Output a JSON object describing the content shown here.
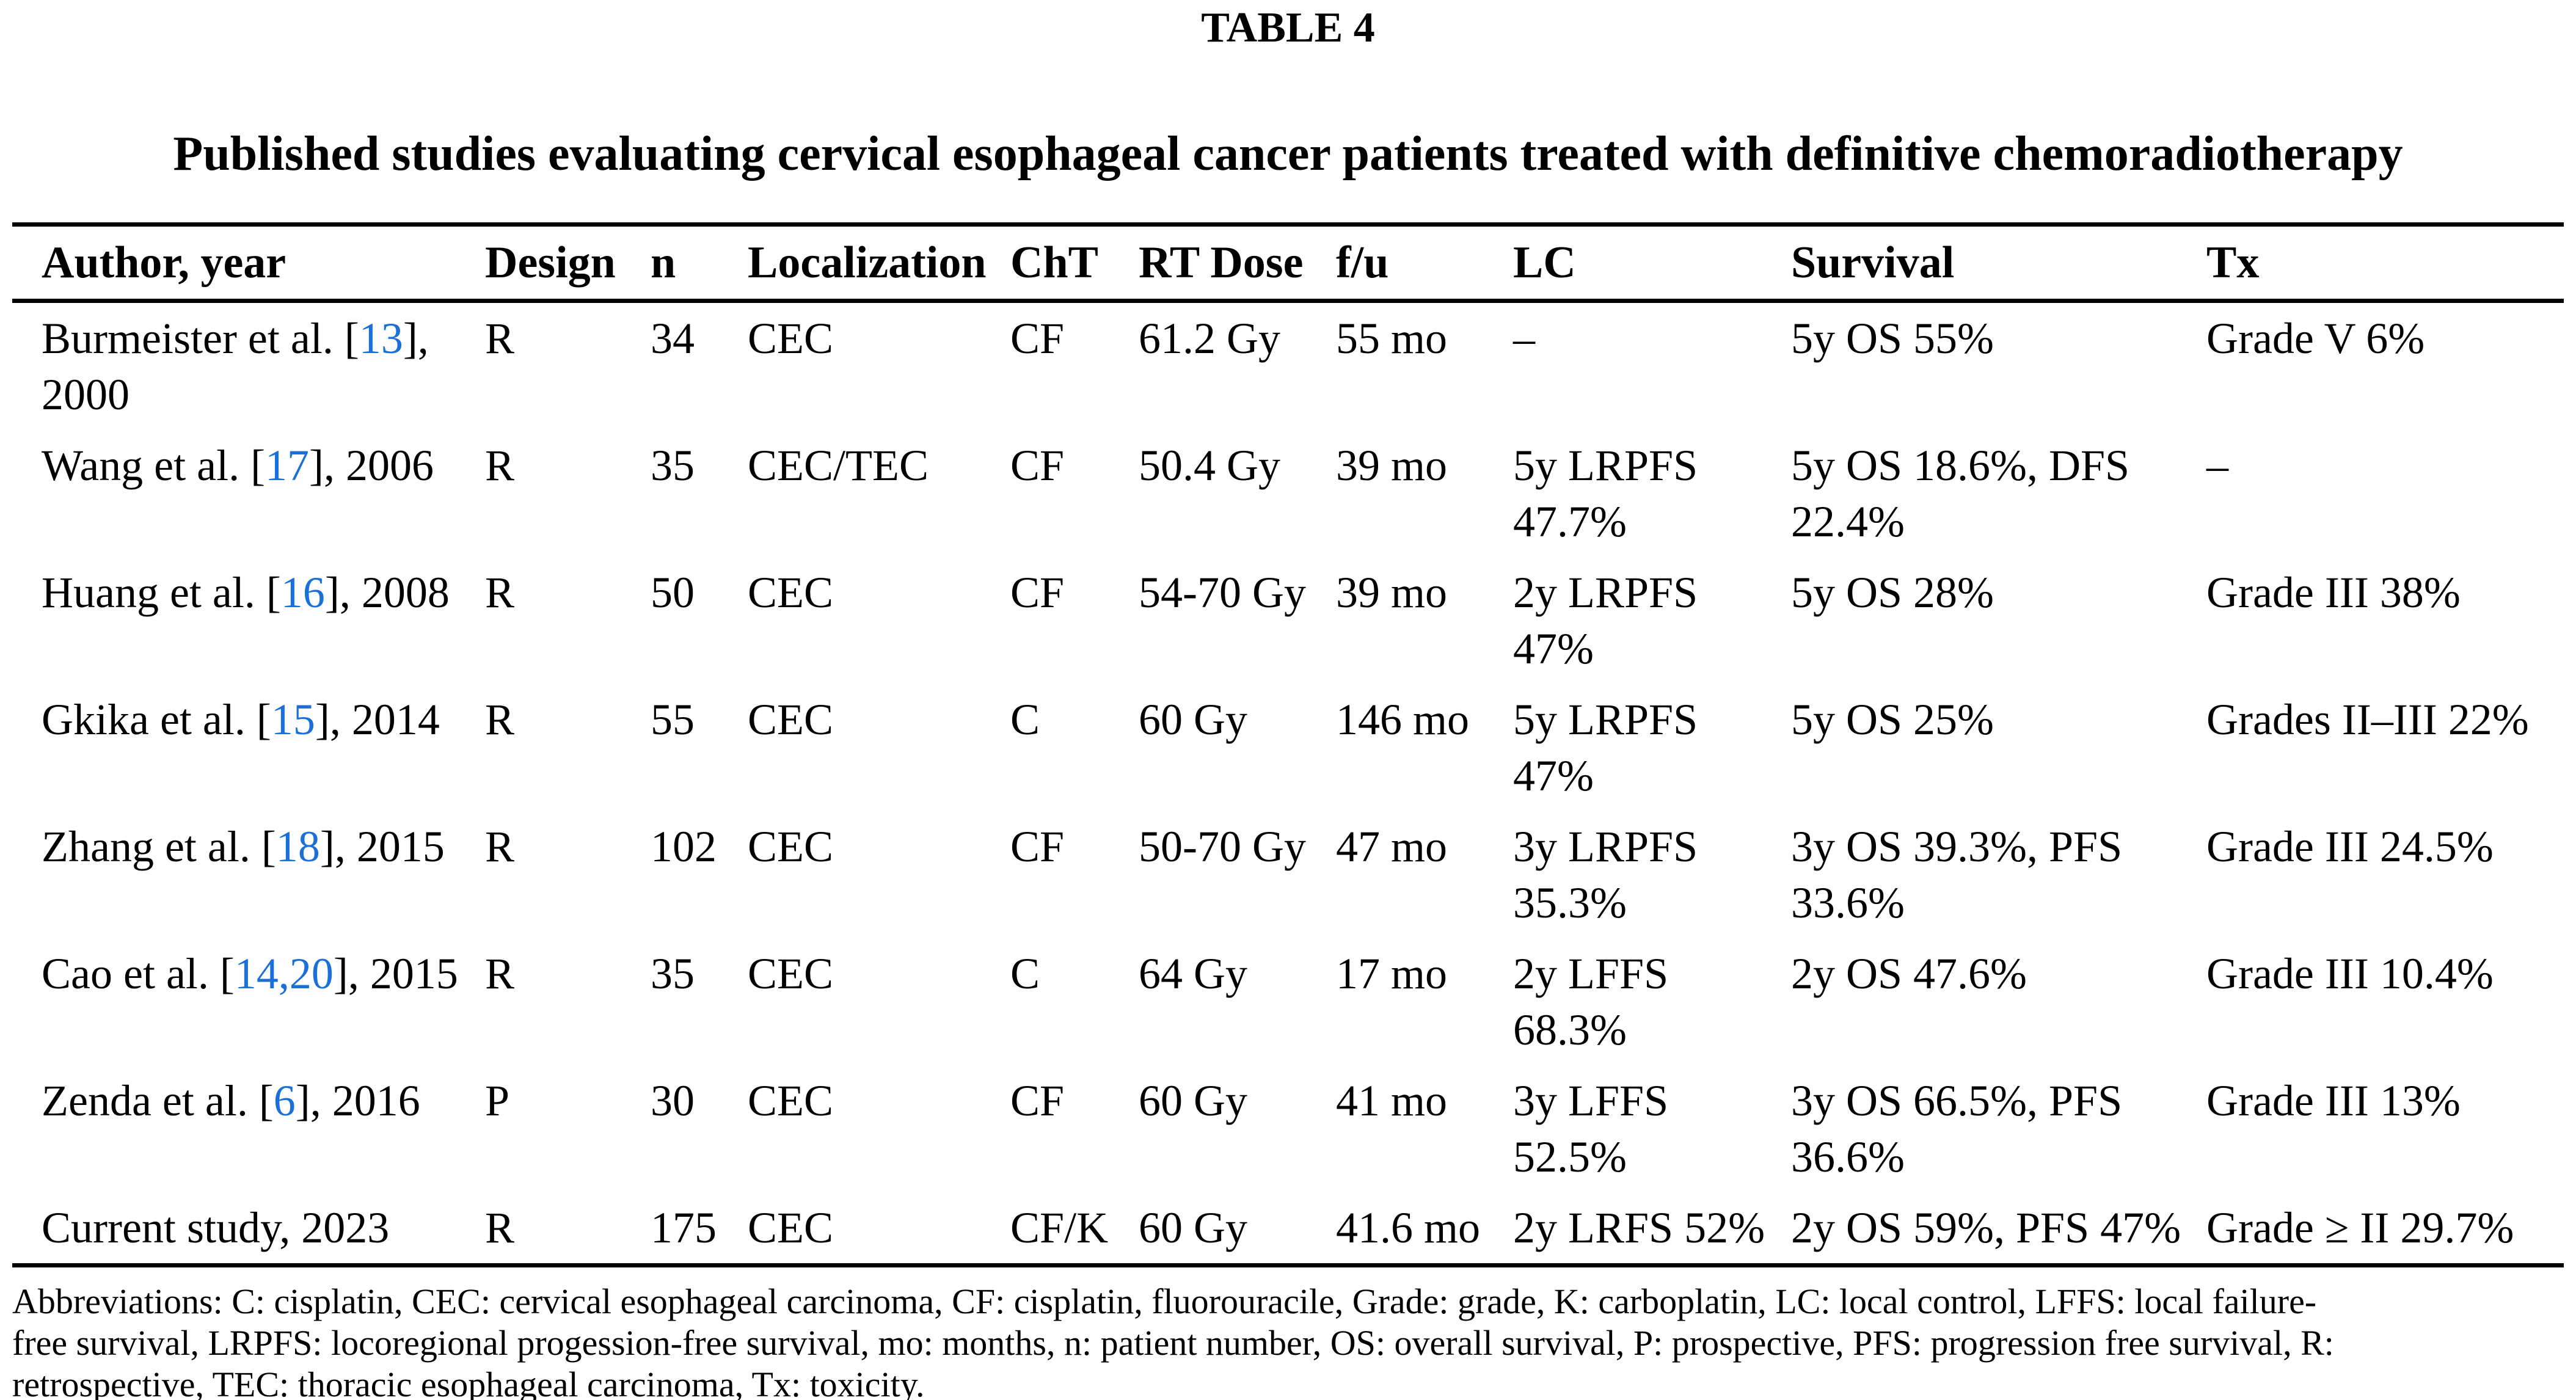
{
  "title": "TABLE 4",
  "subtitle": "Published studies evaluating cervical esophageal cancer patients treated with definitive chemoradiotherapy",
  "colors": {
    "text": "#000000",
    "background": "#FFFFFF",
    "citation_link": "#1B6FD8"
  },
  "table": {
    "columns": [
      "Author, year",
      "Design",
      "n",
      "Localization",
      "ChT",
      "RT Dose",
      "f/u",
      "LC",
      "Survival",
      "Tx"
    ],
    "rows": [
      {
        "author_pre": "Burmeister et al. [",
        "ref": "13",
        "author_post": "],\n2000",
        "design": "R",
        "n": "34",
        "localization": "CEC",
        "cht": "CF",
        "rt_dose": "61.2 Gy",
        "fu": "55 mo",
        "lc": "–",
        "survival": "5y OS 55%",
        "tx": "Grade V 6%"
      },
      {
        "author_pre": "Wang et al. [",
        "ref": "17",
        "author_post": "], 2006",
        "design": "R",
        "n": "35",
        "localization": "CEC/TEC",
        "cht": "CF",
        "rt_dose": "50.4 Gy",
        "fu": "39 mo",
        "lc": "5y LRPFS\n47.7%",
        "survival": "5y OS 18.6%, DFS\n22.4%",
        "tx": "–"
      },
      {
        "author_pre": "Huang et al. [",
        "ref": "16",
        "author_post": "], 2008",
        "design": "R",
        "n": "50",
        "localization": "CEC",
        "cht": "CF",
        "rt_dose": "54-70 Gy",
        "fu": "39 mo",
        "lc": "2y LRPFS\n47%",
        "survival": "5y OS 28%",
        "tx": "Grade III 38%"
      },
      {
        "author_pre": "Gkika et al. [",
        "ref": "15",
        "author_post": "], 2014",
        "design": "R",
        "n": "55",
        "localization": "CEC",
        "cht": "C",
        "rt_dose": "60 Gy",
        "fu": "146 mo",
        "lc": "5y LRPFS\n47%",
        "survival": "5y OS 25%",
        "tx": "Grades II–III 22%"
      },
      {
        "author_pre": "Zhang et al. [",
        "ref": "18",
        "author_post": "], 2015",
        "design": "R",
        "n": "102",
        "localization": "CEC",
        "cht": "CF",
        "rt_dose": "50-70 Gy",
        "fu": "47 mo",
        "lc": "3y LRPFS\n35.3%",
        "survival": "3y OS 39.3%, PFS\n33.6%",
        "tx": "Grade III 24.5%"
      },
      {
        "author_pre": "Cao et al. [",
        "ref": "14,20",
        "author_post": "], 2015",
        "design": "R",
        "n": "35",
        "localization": "CEC",
        "cht": "C",
        "rt_dose": "64 Gy",
        "fu": "17 mo",
        "lc": "2y LFFS\n68.3%",
        "survival": "2y OS 47.6%",
        "tx": "Grade III 10.4%"
      },
      {
        "author_pre": "Zenda et al. [",
        "ref": "6",
        "author_post": "], 2016",
        "design": "P",
        "n": "30",
        "localization": "CEC",
        "cht": "CF",
        "rt_dose": "60 Gy",
        "fu": "41 mo",
        "lc": "3y LFFS\n52.5%",
        "survival": "3y OS 66.5%, PFS\n36.6%",
        "tx": "Grade III 13%"
      },
      {
        "author_pre": "Current study, 2023",
        "ref": "",
        "author_post": "",
        "design": "R",
        "n": "175",
        "localization": "CEC",
        "cht": "CF/K",
        "rt_dose": "60 Gy",
        "fu": "41.6 mo",
        "lc": "2y LRFS 52%",
        "survival": "2y OS 59%, PFS 47%",
        "tx": "Grade ≥ II 29.7%"
      }
    ]
  },
  "footnote": {
    "lines": [
      "Abbreviations: C: cisplatin, CEC: cervical esophageal carcinoma, CF: cisplatin, fluorouracile, Grade: grade, K: carboplatin, LC: local control, LFFS: local failure-",
      "free survival, LRPFS: locoregional progession-free survival, mo: months, n: patient number, OS: overall survival, P: prospective, PFS: progression free survival, R:",
      "retrospective, TEC: thoracic esophageal carcinoma, Tx: toxicity."
    ]
  }
}
